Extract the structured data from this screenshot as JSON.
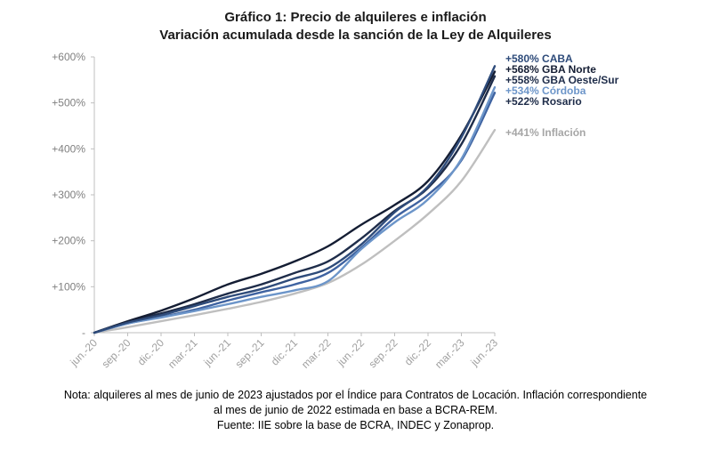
{
  "title": "Gráfico 1: Precio de alquileres e inflación",
  "subtitle": "Variación acumulada desde la sanción de la Ley de Alquileres",
  "note_lines": [
    "Nota: alquileres al mes de junio de 2023 ajustados por el Índice para Contratos de Locación. Inflación correspondiente",
    "al mes de junio de 2022 estimada en base a BCRA-REM.",
    "Fuente: IIE sobre la base de BCRA, INDEC y Zonaprop."
  ],
  "chart_data": {
    "type": "line",
    "title": "Gráfico 1: Precio de alquileres e inflación",
    "subtitle": "Variación acumulada desde la sanción de la Ley de Alquileres",
    "xlabel": "",
    "ylabel": "",
    "ylim": [
      0,
      600
    ],
    "yticks": [
      0,
      100,
      200,
      300,
      400,
      500,
      600
    ],
    "ytick_labels": [
      "-",
      "+100%",
      "+200%",
      "+300%",
      "+400%",
      "+500%",
      "+600%"
    ],
    "x_tick_labels": [
      "jun.-20",
      "sep.-20",
      "dic.-20",
      "mar.-21",
      "jun.-21",
      "sep.-21",
      "dic.-21",
      "mar.-22",
      "jun.-22",
      "sep.-22",
      "dic.-22",
      "mar.-23",
      "jun.-23"
    ],
    "x": [
      "jun.-20",
      "sep.-20",
      "dic.-20",
      "mar.-21",
      "jun.-21",
      "sep.-21",
      "dic.-21",
      "mar.-22",
      "jun.-22",
      "sep.-22",
      "dic.-22",
      "mar.-23",
      "jun.-23"
    ],
    "grid": false,
    "legend": "end-labels-right",
    "series": [
      {
        "label": "+580% CABA",
        "color": "#2e4b7a",
        "values": [
          0,
          22,
          38,
          58,
          78,
          95,
          118,
          140,
          192,
          262,
          318,
          425,
          580
        ]
      },
      {
        "label": "+568% GBA Norte",
        "color": "#141d33",
        "values": [
          0,
          25,
          48,
          75,
          105,
          128,
          155,
          188,
          235,
          278,
          330,
          430,
          568
        ]
      },
      {
        "label": "+558% GBA Oeste/Sur",
        "color": "#1f2d4a",
        "values": [
          0,
          24,
          42,
          62,
          85,
          105,
          130,
          155,
          205,
          265,
          315,
          410,
          558
        ]
      },
      {
        "label": "+534% Córdoba",
        "color": "#6c95c9",
        "values": [
          0,
          20,
          33,
          47,
          62,
          78,
          92,
          112,
          182,
          240,
          290,
          378,
          534
        ]
      },
      {
        "label": "+522% Rosario",
        "color": "#3f63a1",
        "values": [
          0,
          20,
          34,
          50,
          70,
          88,
          105,
          130,
          185,
          250,
          300,
          375,
          522
        ]
      },
      {
        "label": "+441% Inflación",
        "color": "#bfbfbf",
        "values": [
          0,
          12,
          25,
          38,
          52,
          67,
          85,
          108,
          148,
          200,
          258,
          330,
          441
        ]
      }
    ]
  },
  "colors": {
    "axis": "#bfbfbf",
    "tick_text": "#808080",
    "inflation_label": "#a6a6a6",
    "cordoba_label": "#6c95c9",
    "caba_label": "#2e4b7a"
  }
}
